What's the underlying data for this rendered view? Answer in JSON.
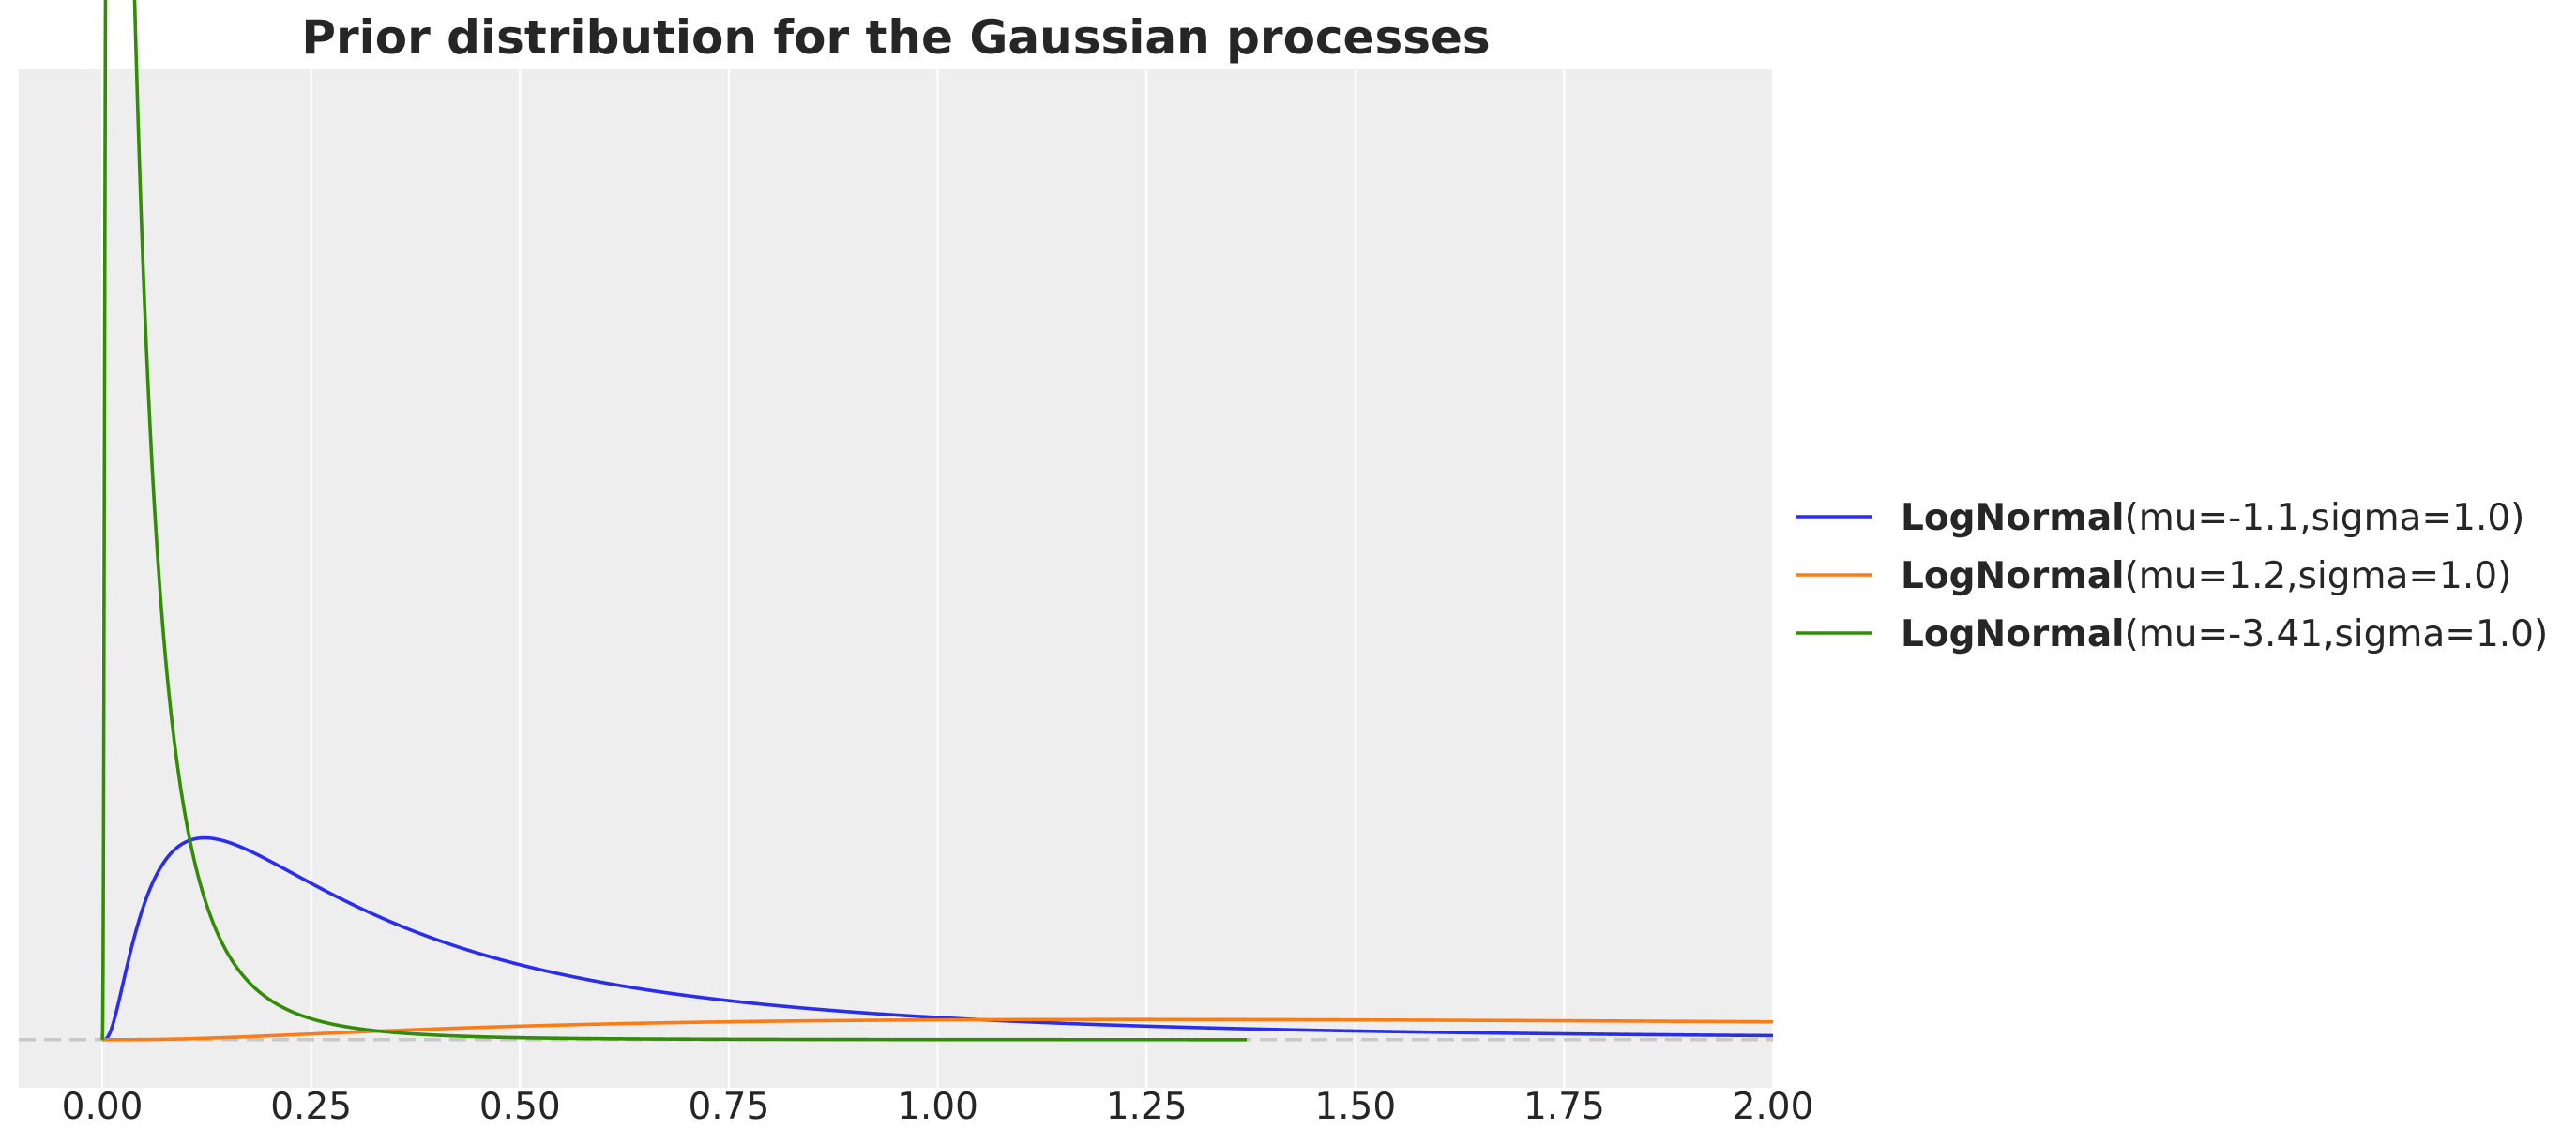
{
  "chart_data": {
    "type": "line",
    "title": "Prior distribution for the Gaussian processes",
    "xlabel": "",
    "ylabel": "",
    "xlim": [
      -0.1,
      2.0
    ],
    "ylim": [
      -0.47,
      9.5
    ],
    "xticks": [
      0.0,
      0.25,
      0.5,
      0.75,
      1.0,
      1.25,
      1.5,
      1.75,
      2.0
    ],
    "xtick_labels": [
      "0.00",
      "0.25",
      "0.50",
      "0.75",
      "1.00",
      "1.25",
      "1.50",
      "1.75",
      "2.00"
    ],
    "grid": true,
    "legend_position": "right",
    "baseline_y": 0,
    "series": [
      {
        "name": "LogNormal",
        "params": "(mu=-1.1,sigma=1.0)",
        "distribution": "lognormal",
        "mu": -1.1,
        "sigma": 1.0,
        "x_range": [
          0,
          2.0
        ],
        "color": "#2a2eec"
      },
      {
        "name": "LogNormal",
        "params": "(mu=1.2,sigma=1.0)",
        "distribution": "lognormal",
        "mu": 1.2,
        "sigma": 1.0,
        "x_range": [
          0,
          2.0
        ],
        "color": "#fa7c17"
      },
      {
        "name": "LogNormal",
        "params": "(mu=-3.41,sigma=1.0)",
        "distribution": "lognormal",
        "mu": -3.41,
        "sigma": 1.0,
        "x_range": [
          0,
          1.37
        ],
        "color": "#328c06"
      }
    ]
  }
}
